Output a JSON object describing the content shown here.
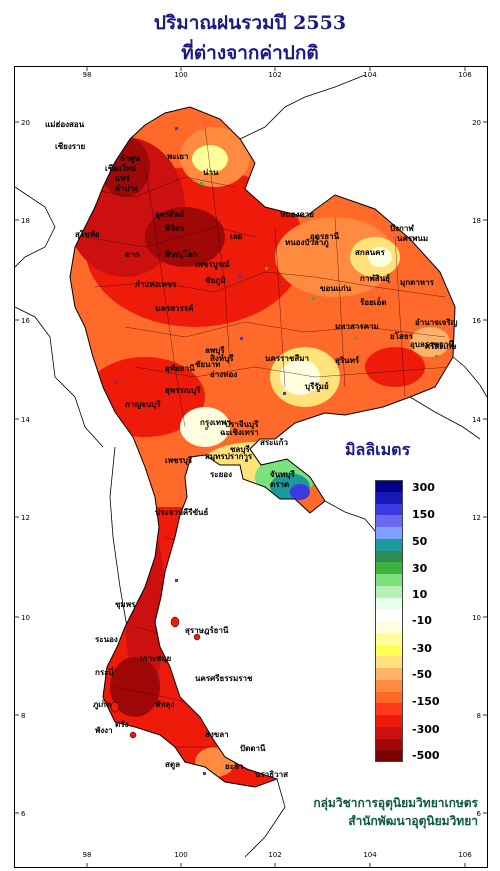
{
  "title_line1": "ปริมาณฝนรวมปี 2553",
  "title_line2": "ที่ต่างจากค่าปกติ",
  "unit_label": "มิลลิเมตร",
  "credit_line1": "กลุ่มวิชาการอุตุนิยมวิทยาเกษตร",
  "credit_line2": "สำนักพัฒนาอุตุนิยมวิทยา",
  "x_ticks": [
    "98",
    "100",
    "102",
    "104",
    "106"
  ],
  "y_ticks": [
    "20",
    "18",
    "16",
    "14",
    "12",
    "10",
    "8",
    "6"
  ],
  "legend": {
    "labels": [
      "300",
      "150",
      "50",
      "30",
      "10",
      "-10",
      "-30",
      "-50",
      "-150",
      "-300",
      "-500"
    ],
    "colors": [
      "#00008b",
      "#1818b8",
      "#3a3ae0",
      "#6a6af0",
      "#7fa0ff",
      "#1a9a9a",
      "#2e8b57",
      "#3cb43c",
      "#7ce07c",
      "#b8f0b8",
      "#e8ffe8",
      "#ffffff",
      "#ffffe0",
      "#ffff99",
      "#ffff55",
      "#ffe27a",
      "#ffb36a",
      "#ff8a40",
      "#ff6a2a",
      "#ff3a1a",
      "#ee1a0a",
      "#cc1010",
      "#a00808",
      "#7a0404"
    ]
  },
  "places": [
    "เชียงราย",
    "พะเยา",
    "น่าน",
    "ลำปาง",
    "เชียงใหม่",
    "แพร่",
    "อุตรดิตถ์",
    "ตาก",
    "พิษณุโลก",
    "เพชรบูรณ์",
    "เลย",
    "หนองคาย",
    "อุดรธานี",
    "สกลนคร",
    "นครพนม",
    "มุกดาหาร",
    "ขอนแก่น",
    "กาฬสินธุ์",
    "ชัยภูมิ",
    "นครราชสีมา",
    "บุรีรัมย์",
    "สุรินทร์",
    "อุบลราชธานี",
    "นครสวรรค์",
    "ลพบุรี",
    "สุพรรณบุรี",
    "กาญจนบุรี",
    "กรุงเทพฯ",
    "ชลบุรี",
    "ระยอง",
    "จันทบุรี",
    "ตราด",
    "เพชรบุรี",
    "ประจวบคีรีขันธ์",
    "ชุมพร",
    "ระนอง",
    "สุราษฎร์ธานี",
    "นครศรีธรรมราช",
    "ภูเก็ต",
    "กระบี่",
    "ตรัง",
    "สงขลา",
    "ปัตตานี",
    "นราธิวาส",
    "ยะลา",
    "สตูล",
    "ปราจีนบุรี",
    "สระแก้ว",
    "ฉะเชิงเทรา",
    "สมุทรปราการ",
    "อ่างทอง",
    "สิงห์บุรี",
    "ชัยนาท",
    "อุทัยธานี",
    "กำแพงเพชร",
    "สุโขทัย",
    "พิจิตร",
    "ลำพูน",
    "แม่ฮ่องสอน",
    "ร้อยเอ็ด",
    "มหาสารคาม",
    "ยโสธร",
    "อำนาจเจริญ",
    "ศรีสะเกษ",
    "หนองบัวลำภู",
    "บึงกาฬ",
    "พังงา",
    "เกาะสมุย",
    "พัทลุง"
  ]
}
